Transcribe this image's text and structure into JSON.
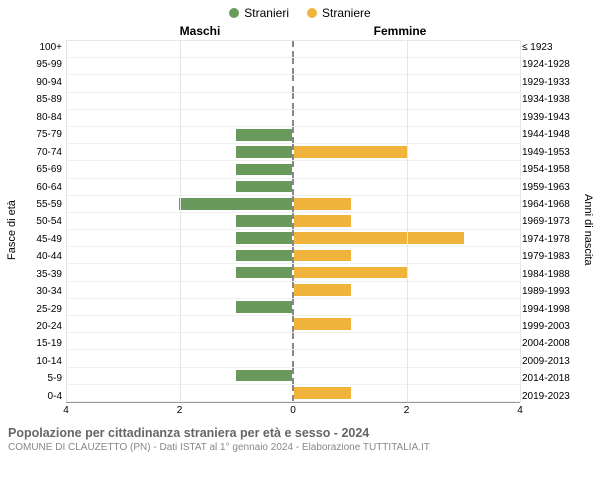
{
  "legend": {
    "male": {
      "label": "Stranieri",
      "color": "#6a9a5b"
    },
    "female": {
      "label": "Straniere",
      "color": "#f0b33c"
    }
  },
  "header_left": "Maschi",
  "header_right": "Femmine",
  "axis_left_label": "Fasce di età",
  "axis_right_label": "Anni di nascita",
  "grid_color": "#e6e6e6",
  "x_axis": {
    "max": 4,
    "ticks": [
      0,
      2,
      4
    ]
  },
  "rows": [
    {
      "age": "100+",
      "birth": "≤ 1923",
      "m": 0,
      "f": 0
    },
    {
      "age": "95-99",
      "birth": "1924-1928",
      "m": 0,
      "f": 0
    },
    {
      "age": "90-94",
      "birth": "1929-1933",
      "m": 0,
      "f": 0
    },
    {
      "age": "85-89",
      "birth": "1934-1938",
      "m": 0,
      "f": 0
    },
    {
      "age": "80-84",
      "birth": "1939-1943",
      "m": 0,
      "f": 0
    },
    {
      "age": "75-79",
      "birth": "1944-1948",
      "m": 1,
      "f": 0
    },
    {
      "age": "70-74",
      "birth": "1949-1953",
      "m": 1,
      "f": 2
    },
    {
      "age": "65-69",
      "birth": "1954-1958",
      "m": 1,
      "f": 0
    },
    {
      "age": "60-64",
      "birth": "1959-1963",
      "m": 1,
      "f": 0
    },
    {
      "age": "55-59",
      "birth": "1964-1968",
      "m": 2,
      "f": 1
    },
    {
      "age": "50-54",
      "birth": "1969-1973",
      "m": 1,
      "f": 1
    },
    {
      "age": "45-49",
      "birth": "1974-1978",
      "m": 1,
      "f": 3
    },
    {
      "age": "40-44",
      "birth": "1979-1983",
      "m": 1,
      "f": 1
    },
    {
      "age": "35-39",
      "birth": "1984-1988",
      "m": 1,
      "f": 2
    },
    {
      "age": "30-34",
      "birth": "1989-1993",
      "m": 0,
      "f": 1
    },
    {
      "age": "25-29",
      "birth": "1994-1998",
      "m": 1,
      "f": 0
    },
    {
      "age": "20-24",
      "birth": "1999-2003",
      "m": 0,
      "f": 1
    },
    {
      "age": "15-19",
      "birth": "2004-2008",
      "m": 0,
      "f": 0
    },
    {
      "age": "10-14",
      "birth": "2009-2013",
      "m": 0,
      "f": 0
    },
    {
      "age": "5-9",
      "birth": "2014-2018",
      "m": 1,
      "f": 0
    },
    {
      "age": "0-4",
      "birth": "2019-2023",
      "m": 0,
      "f": 1
    }
  ],
  "footer": {
    "title": "Popolazione per cittadinanza straniera per età e sesso - 2024",
    "sub": "COMUNE DI CLAUZETTO (PN) - Dati ISTAT al 1° gennaio 2024 - Elaborazione TUTTITALIA.IT"
  }
}
